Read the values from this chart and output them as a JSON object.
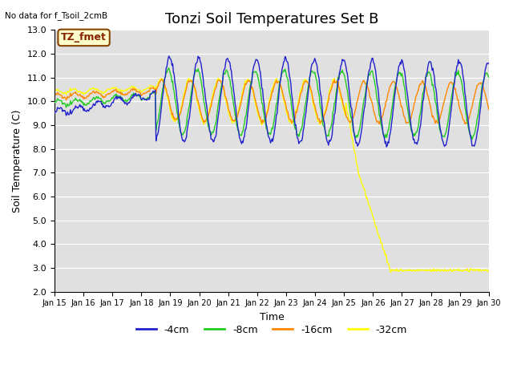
{
  "title": "Tonzi Soil Temperatures Set B",
  "no_data_text": "No data for f_Tsoil_2cmB",
  "annotation_text": "TZ_fmet",
  "xlabel": "Time",
  "ylabel": "Soil Temperature (C)",
  "ylim": [
    2.0,
    13.0
  ],
  "yticks": [
    2.0,
    3.0,
    4.0,
    5.0,
    6.0,
    7.0,
    8.0,
    9.0,
    10.0,
    11.0,
    12.0,
    13.0
  ],
  "xtick_labels": [
    "Jan 15",
    "Jan 16",
    "Jan 17",
    "Jan 18",
    "Jan 19",
    "Jan 20",
    "Jan 21",
    "Jan 22",
    "Jan 23",
    "Jan 24",
    "Jan 25",
    "Jan 26",
    "Jan 27",
    "Jan 28",
    "Jan 29",
    "Jan 30"
  ],
  "series_colors": [
    "#2222cc",
    "#22cc22",
    "#ff8800",
    "#ffff00"
  ],
  "series_labels": [
    "-4cm",
    "-8cm",
    "-16cm",
    "-32cm"
  ],
  "plot_bg_color": "#e0e0e0",
  "annotation_bg": "#ffffcc",
  "annotation_border": "#884400",
  "annotation_text_color": "#882200",
  "title_fontsize": 13,
  "axis_label_fontsize": 9,
  "tick_fontsize": 8,
  "num_points": 600
}
